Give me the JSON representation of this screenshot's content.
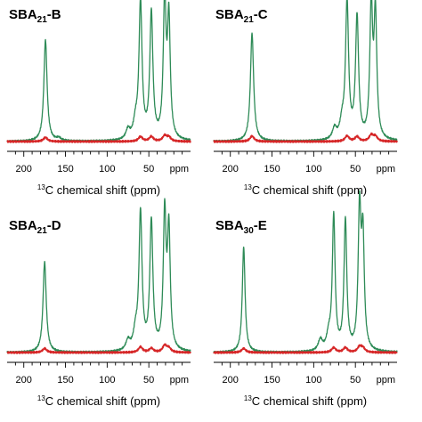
{
  "chart_data": [
    {
      "type": "line",
      "title": "SBA21-B",
      "title_main": "SBA",
      "title_sub": "21",
      "title_suffix": "-B",
      "xlabel_sup": "13",
      "xlabel": "C chemical shift (ppm)",
      "x_unit_label": "ppm",
      "x_reversed": true,
      "xlim": [
        220,
        0
      ],
      "xticks": [
        200,
        150,
        100,
        50
      ],
      "xtick_labels": [
        "200",
        "150",
        "100",
        "50"
      ],
      "series": [
        {
          "color": "#2e8b57",
          "peaks": [
            [
              174,
              0.74,
              2.3
            ],
            [
              158,
              0.02,
              3
            ],
            [
              75,
              0.07,
              3
            ],
            [
              66,
              0.11,
              3
            ],
            [
              60,
              1.0,
              2.2
            ],
            [
              47,
              0.92,
              2.2
            ],
            [
              31,
              1.0,
              2.0
            ],
            [
              26,
              0.86,
              2.0
            ]
          ]
        },
        {
          "color": "#d62728",
          "peaks": [
            [
              174,
              0.03,
              3
            ],
            [
              60,
              0.035,
              3
            ],
            [
              47,
              0.035,
              3
            ],
            [
              31,
              0.04,
              3
            ],
            [
              26,
              0.03,
              3
            ]
          ]
        }
      ]
    },
    {
      "type": "line",
      "title": "SBA21-C",
      "title_main": "SBA",
      "title_sub": "21",
      "title_suffix": "-C",
      "xlabel_sup": "13",
      "xlabel": "C chemical shift (ppm)",
      "x_unit_label": "ppm",
      "x_reversed": true,
      "xlim": [
        220,
        0
      ],
      "xticks": [
        200,
        150,
        100,
        50
      ],
      "xtick_labels": [
        "200",
        "150",
        "100",
        "50"
      ],
      "series": [
        {
          "color": "#2e8b57",
          "peaks": [
            [
              174,
              0.79,
              2.3
            ],
            [
              75,
              0.08,
              3
            ],
            [
              66,
              0.11,
              3
            ],
            [
              60,
              1.0,
              2.2
            ],
            [
              48,
              0.89,
              2.2
            ],
            [
              31,
              0.96,
              2.0
            ],
            [
              26,
              0.9,
              2.0
            ]
          ]
        },
        {
          "color": "#d62728",
          "peaks": [
            [
              174,
              0.04,
              3
            ],
            [
              60,
              0.04,
              3
            ],
            [
              48,
              0.035,
              3
            ],
            [
              31,
              0.045,
              3
            ],
            [
              26,
              0.035,
              3
            ]
          ]
        }
      ]
    },
    {
      "type": "line",
      "title": "SBA21-D",
      "title_main": "SBA",
      "title_sub": "21",
      "title_suffix": "-D",
      "xlabel_sup": "13",
      "xlabel": "C chemical shift (ppm)",
      "x_unit_label": "ppm",
      "x_reversed": true,
      "xlim": [
        220,
        0
      ],
      "xticks": [
        200,
        150,
        100,
        50
      ],
      "xtick_labels": [
        "200",
        "150",
        "100",
        "50"
      ],
      "series": [
        {
          "color": "#2e8b57",
          "peaks": [
            [
              175,
              0.66,
              2.3
            ],
            [
              75,
              0.07,
              3
            ],
            [
              66,
              0.12,
              3
            ],
            [
              60,
              1.0,
              2.2
            ],
            [
              47,
              0.94,
              2.2
            ],
            [
              31,
              0.98,
              2.0
            ],
            [
              26,
              0.86,
              2.0
            ]
          ]
        },
        {
          "color": "#d62728",
          "peaks": [
            [
              175,
              0.03,
              3
            ],
            [
              60,
              0.04,
              3
            ],
            [
              47,
              0.03,
              3
            ],
            [
              31,
              0.05,
              3
            ],
            [
              26,
              0.03,
              3
            ]
          ]
        }
      ]
    },
    {
      "type": "line",
      "title": "SBA30-E",
      "title_main": "SBA",
      "title_sub": "30",
      "title_suffix": "-E",
      "xlabel_sup": "13",
      "xlabel": "C chemical shift (ppm)",
      "x_unit_label": "ppm",
      "x_reversed": true,
      "xlim": [
        220,
        0
      ],
      "xticks": [
        200,
        150,
        100,
        50
      ],
      "xtick_labels": [
        "200",
        "150",
        "100",
        "50"
      ],
      "series": [
        {
          "color": "#2e8b57",
          "peaks": [
            [
              184,
              0.77,
              2.0
            ],
            [
              92,
              0.08,
              3
            ],
            [
              82,
              0.1,
              3
            ],
            [
              76,
              0.98,
              2.0
            ],
            [
              62,
              0.95,
              2.0
            ],
            [
              45,
              1.0,
              2.0
            ],
            [
              41,
              0.8,
              2.0
            ]
          ]
        },
        {
          "color": "#d62728",
          "peaks": [
            [
              184,
              0.03,
              3
            ],
            [
              76,
              0.035,
              3
            ],
            [
              62,
              0.035,
              3
            ],
            [
              45,
              0.04,
              3
            ],
            [
              41,
              0.03,
              3
            ]
          ]
        }
      ]
    }
  ]
}
